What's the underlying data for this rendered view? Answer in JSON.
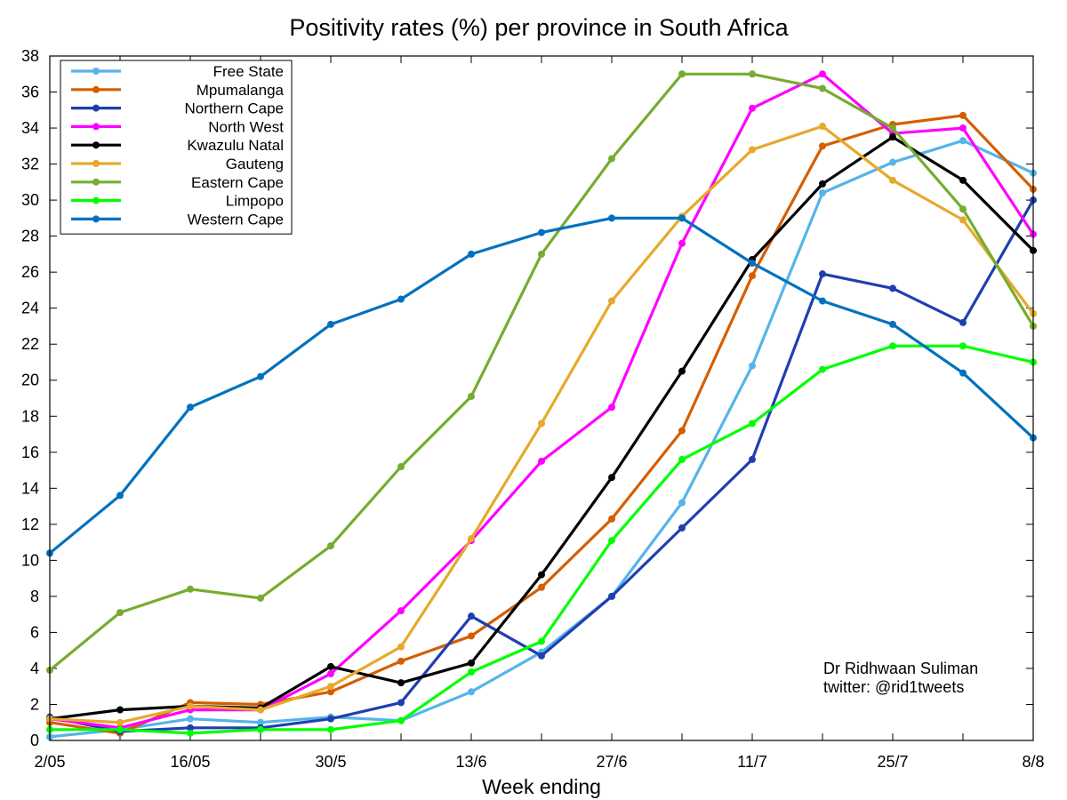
{
  "chart_data": {
    "type": "line",
    "title": "Positivity rates (%) per province in South Africa",
    "xlabel": "Week ending",
    "ylabel": "",
    "ylim": [
      0,
      38
    ],
    "yticks": [
      0,
      2,
      4,
      6,
      8,
      10,
      12,
      14,
      16,
      18,
      20,
      22,
      24,
      26,
      28,
      30,
      32,
      34,
      36,
      38
    ],
    "x_tick_labels": [
      "2/05",
      "16/05",
      "30/5",
      "13/6",
      "27/6",
      "11/7",
      "25/7",
      "8/8"
    ],
    "x_points": 15,
    "grid": false,
    "legend_position": "top-left",
    "annotation": [
      "Dr Ridhwaan Suliman",
      "twitter: @rid1tweets"
    ],
    "series": [
      {
        "name": "Free State",
        "color": "#56b4e9",
        "values": [
          0.2,
          0.6,
          1.2,
          1.0,
          1.3,
          1.1,
          2.7,
          4.9,
          8.0,
          13.2,
          20.8,
          30.4,
          32.1,
          33.3,
          31.5
        ]
      },
      {
        "name": "Mpumalanga",
        "color": "#d55e00",
        "values": [
          1.0,
          0.4,
          2.1,
          2.0,
          2.7,
          4.4,
          5.8,
          8.5,
          12.3,
          17.2,
          25.8,
          33.0,
          34.2,
          34.7,
          30.6
        ]
      },
      {
        "name": "Northern Cape",
        "color": "#1f3fb0",
        "values": [
          1.3,
          0.5,
          0.7,
          0.7,
          1.2,
          2.1,
          6.9,
          4.7,
          8.0,
          11.8,
          15.6,
          25.9,
          25.1,
          23.2,
          30.0
        ]
      },
      {
        "name": "North West",
        "color": "#ff00ff",
        "values": [
          1.2,
          0.7,
          1.7,
          1.7,
          3.7,
          7.2,
          11.1,
          15.5,
          18.5,
          27.6,
          35.1,
          37.0,
          33.7,
          34.0,
          28.1
        ]
      },
      {
        "name": "Kwazulu Natal",
        "color": "#000000",
        "values": [
          1.2,
          1.7,
          1.9,
          1.8,
          4.1,
          3.2,
          4.3,
          9.2,
          14.6,
          20.5,
          26.7,
          30.9,
          33.5,
          31.1,
          27.2
        ]
      },
      {
        "name": "Gauteng",
        "color": "#e6a92a",
        "values": [
          1.2,
          1.0,
          1.9,
          1.7,
          3.0,
          5.2,
          11.2,
          17.6,
          24.4,
          29.1,
          32.8,
          34.1,
          31.1,
          28.9,
          23.7
        ]
      },
      {
        "name": "Eastern Cape",
        "color": "#77ac30",
        "values": [
          3.9,
          7.1,
          8.4,
          7.9,
          10.8,
          15.2,
          19.1,
          27.0,
          32.3,
          37.0,
          37.0,
          36.2,
          34.0,
          29.5,
          23.0
        ]
      },
      {
        "name": "Limpopo",
        "color": "#00ff00",
        "values": [
          0.6,
          0.6,
          0.4,
          0.6,
          0.6,
          1.1,
          3.8,
          5.5,
          11.1,
          15.6,
          17.6,
          20.6,
          21.9,
          21.9,
          21.0
        ]
      },
      {
        "name": "Western Cape",
        "color": "#0072bd",
        "values": [
          10.4,
          13.6,
          18.5,
          20.2,
          23.1,
          24.5,
          27.0,
          28.2,
          29.0,
          29.0,
          26.5,
          24.4,
          23.1,
          20.4,
          16.8
        ]
      }
    ]
  }
}
